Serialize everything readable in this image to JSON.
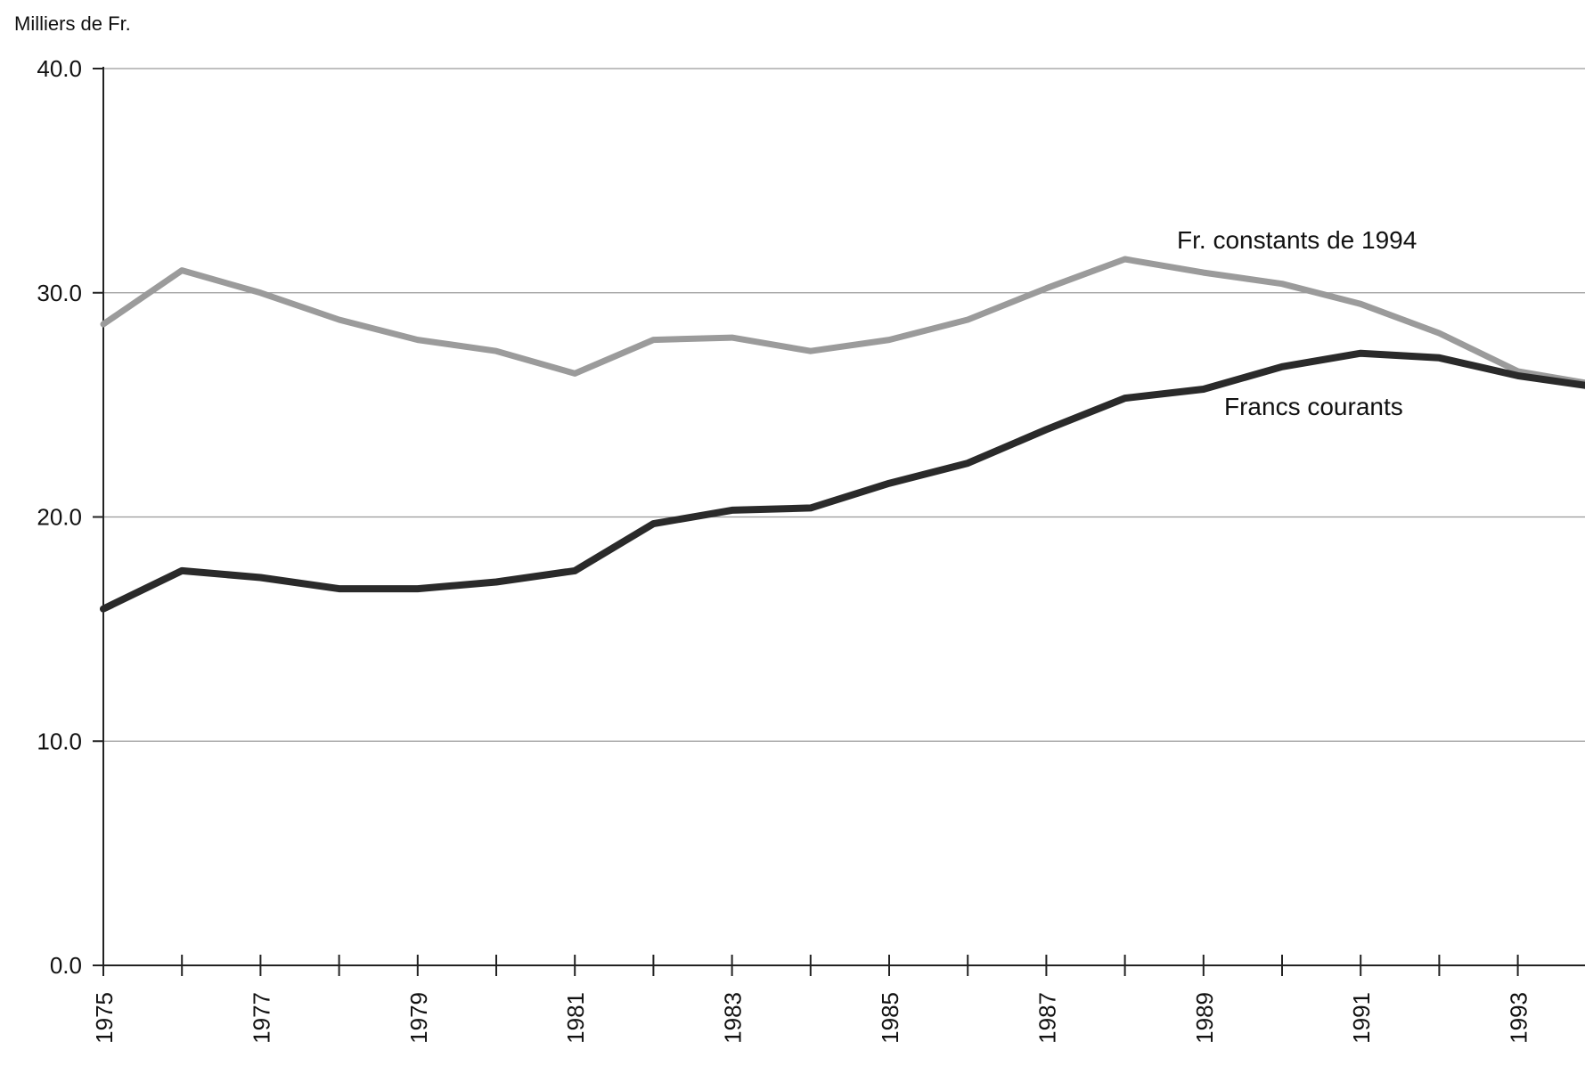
{
  "chart_data": {
    "type": "line",
    "ylabel": "Milliers de Fr.",
    "xlabel": "",
    "ylim": [
      0,
      40
    ],
    "xlim": [
      1975,
      1994
    ],
    "y_ticks": [
      "0.0",
      "10.0",
      "20.0",
      "30.0",
      "40.0"
    ],
    "y_tick_values": [
      0,
      10,
      20,
      30,
      40
    ],
    "x_tick_labels": [
      "1975",
      "1977",
      "1979",
      "1981",
      "1983",
      "1985",
      "1987",
      "1989",
      "1991",
      "1993"
    ],
    "x_tick_values": [
      1975,
      1977,
      1979,
      1981,
      1983,
      1985,
      1987,
      1989,
      1991,
      1993
    ],
    "x_minor_ticks": [
      1976,
      1978,
      1980,
      1982,
      1984,
      1986,
      1988,
      1990,
      1992
    ],
    "grid": true,
    "legend": "none",
    "x": [
      1975,
      1976,
      1977,
      1978,
      1979,
      1980,
      1981,
      1982,
      1983,
      1984,
      1985,
      1986,
      1987,
      1988,
      1989,
      1990,
      1991,
      1992,
      1993,
      1994
    ],
    "series": [
      {
        "name": "Fr. constants de 1994",
        "color": "#9b9b9b",
        "values": [
          28.6,
          31.0,
          30.0,
          28.8,
          27.9,
          27.4,
          26.4,
          27.9,
          28.0,
          27.4,
          27.9,
          28.8,
          30.2,
          31.5,
          30.9,
          30.4,
          29.5,
          28.2,
          26.5,
          25.9
        ]
      },
      {
        "name": "Francs courants",
        "color": "#2a2a2a",
        "values": [
          15.9,
          17.6,
          17.3,
          16.8,
          16.8,
          17.1,
          17.6,
          19.7,
          20.3,
          20.4,
          21.5,
          22.4,
          23.9,
          25.3,
          25.7,
          26.7,
          27.3,
          27.1,
          26.3,
          25.8
        ]
      }
    ],
    "annotations": [
      {
        "text": "Fr. constants de 1994",
        "series": 0
      },
      {
        "text": "Francs courants",
        "series": 1
      }
    ]
  }
}
